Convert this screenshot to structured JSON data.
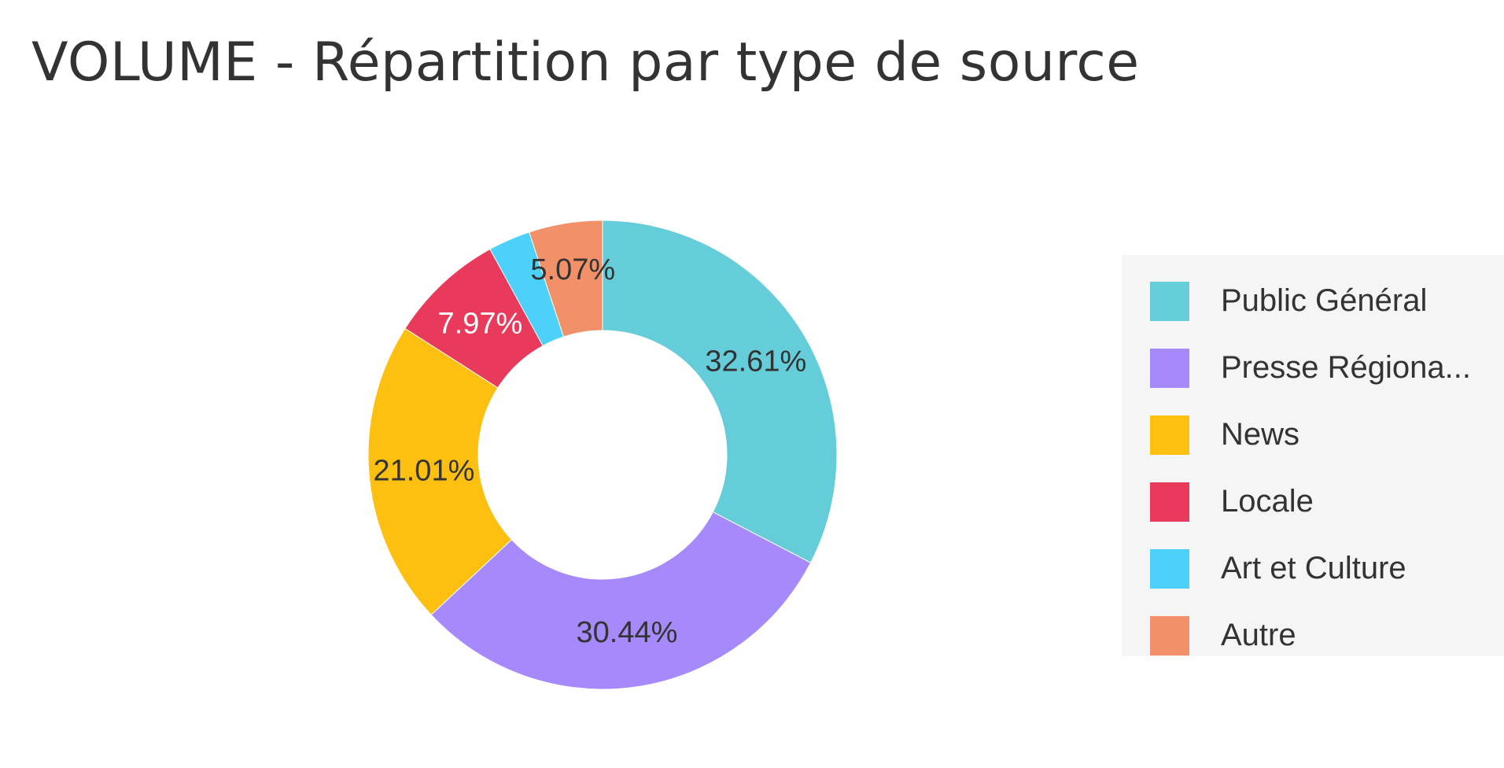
{
  "chart_data": {
    "type": "pie",
    "title": "VOLUME - Répartition par type de source",
    "categories": [
      "Public Général",
      "Presse Régiona...",
      "News",
      "Locale",
      "Art et Culture",
      "Autre"
    ],
    "values": [
      32.61,
      30.44,
      21.01,
      7.97,
      2.9,
      5.07
    ],
    "labels": [
      "32.61%",
      "30.44%",
      "21.01%",
      "7.97%",
      "",
      "5.07%"
    ],
    "colors": [
      "#65cdd9",
      "#a689fa",
      "#fdc010",
      "#ea3a5b",
      "#4dd0fa",
      "#f29169"
    ],
    "label_colors": [
      "#333333",
      "#333333",
      "#333333",
      "#ffffff",
      "#333333",
      "#333333"
    ],
    "donut": true,
    "legend_position": "right"
  }
}
